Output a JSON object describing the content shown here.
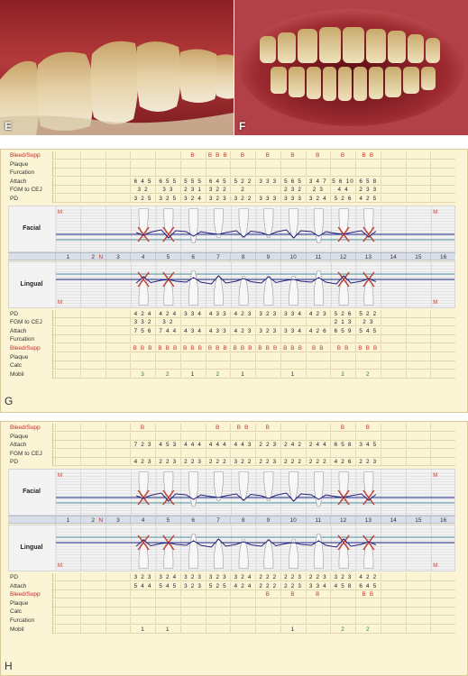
{
  "photos": {
    "left_label": "E",
    "right_label": "F"
  },
  "chart_g": {
    "label": "G",
    "top_rows": [
      {
        "label": "Bleed/Supp",
        "red": true,
        "cells": {
          "6": "B",
          "7": "B B B",
          "8": "B",
          "9": "B",
          "10": "B",
          "11": "B",
          "12": "B",
          "13": "B B"
        }
      },
      {
        "label": "Plaque",
        "cells": {}
      },
      {
        "label": "Furcation",
        "cells": {}
      },
      {
        "label": "Attach",
        "cells": {
          "4": "6 4 5",
          "5": "6 5 5",
          "6": "5 5 5",
          "7": "6 4 5",
          "8": "5 2 2",
          "9": "3 3 3",
          "10": "5 6 5",
          "11": "3 4 7",
          "12": "5 6 10",
          "13": "6 5 8"
        }
      },
      {
        "label": "FGM to CEJ",
        "cells": {
          "4": "3 2",
          "5": "3 3",
          "6": "2 3 1",
          "7": "3 2 2",
          "8": "2",
          "10": "2 3 2",
          "11": "2 3",
          "12": "4 4",
          "13": "2 3 3"
        }
      },
      {
        "label": "PD",
        "cells": {
          "4": "3 2 5",
          "5": "3 2 5",
          "6": "3 2 4",
          "7": "3 2 3",
          "8": "3 2 2",
          "9": "3 3 3",
          "10": "3 3 3",
          "11": "3 2 4",
          "12": "5 2 6",
          "13": "4 2 5"
        }
      }
    ],
    "facial_label": "Facial",
    "lingual_label": "Lingual",
    "tooth_numbers": [
      "1",
      "2",
      "3",
      "4",
      "5",
      "6",
      "7",
      "8",
      "9",
      "10",
      "11",
      "12",
      "13",
      "14",
      "15",
      "16"
    ],
    "n_marker": "N",
    "m_marker": "M",
    "bottom_rows": [
      {
        "label": "PD",
        "cells": {
          "4": "4 2 4",
          "5": "4 2 4",
          "6": "3 3 4",
          "7": "4 3 3",
          "8": "4 2 3",
          "9": "3 2 3",
          "10": "3 3 4",
          "11": "4 2 3",
          "12": "5 2 6",
          "13": "5 2 2"
        }
      },
      {
        "label": "FGM to CEJ",
        "cells": {
          "4": "3 3 2",
          "5": "3 2",
          "12": "2 1 3",
          "13": "2 3"
        }
      },
      {
        "label": "Attach",
        "cells": {
          "4": "7 5 6",
          "5": "7 4 4",
          "6": "4 3 4",
          "7": "4 3 3",
          "8": "4 2 3",
          "9": "3 2 3",
          "10": "3 3 4",
          "11": "4 2 6",
          "12": "6 5 9",
          "13": "5 4 5"
        }
      },
      {
        "label": "Furcation",
        "cells": {}
      },
      {
        "label": "Bleed/Supp",
        "red": true,
        "cells": {
          "4": "B B B",
          "5": "B B B",
          "6": "B B B",
          "7": "B B B",
          "8": "B B B",
          "9": "B B B",
          "10": "B B B",
          "11": "B B",
          "12": "B B",
          "13": "B B B"
        }
      },
      {
        "label": "Plaque",
        "cells": {}
      },
      {
        "label": "Calc",
        "cells": {}
      },
      {
        "label": "Mobil",
        "cells": {
          "4": "3",
          "5": "2",
          "6": "1",
          "7": "2",
          "8": "1",
          "10": "1",
          "12": "2",
          "13": "2"
        }
      }
    ]
  },
  "chart_h": {
    "label": "H",
    "top_rows": [
      {
        "label": "Bleed/Supp",
        "red": true,
        "cells": {
          "4": "B",
          "7": "B",
          "8": "B B",
          "9": "B",
          "12": "B",
          "13": "B"
        }
      },
      {
        "label": "Plaque",
        "cells": {}
      },
      {
        "label": "Attach",
        "cells": {
          "4": "7 2 3",
          "5": "4 5 3",
          "6": "4 4 4",
          "7": "4 4 4",
          "8": "4 4 3",
          "9": "2 2 3",
          "10": "2 4 2",
          "11": "2 4 4",
          "12": "6 5 8",
          "13": "3 4 5"
        }
      },
      {
        "label": "FGM to CEJ",
        "cells": {}
      },
      {
        "label": "PD",
        "cells": {
          "4": "4 2 3",
          "5": "2 2 3",
          "6": "2 2 3",
          "7": "2 2 2",
          "8": "3 2 2",
          "9": "2 2 3",
          "10": "2 2 2",
          "11": "2 2 2",
          "12": "4 2 6",
          "13": "2 2 3"
        }
      }
    ],
    "facial_label": "Facial",
    "lingual_label": "Lingual",
    "tooth_numbers": [
      "1",
      "2",
      "3",
      "4",
      "5",
      "6",
      "7",
      "8",
      "9",
      "10",
      "11",
      "12",
      "13",
      "14",
      "15",
      "16"
    ],
    "n_marker": "N",
    "m_marker": "M",
    "bottom_rows": [
      {
        "label": "PD",
        "cells": {
          "4": "3 2 3",
          "5": "3 2 4",
          "6": "3 2 3",
          "7": "3 2 3",
          "8": "3 2 4",
          "9": "2 2 2",
          "10": "2 2 3",
          "11": "2 2 3",
          "12": "3 2 3",
          "13": "4 2 2"
        }
      },
      {
        "label": "Attach",
        "cells": {
          "4": "5 4 4",
          "5": "5 4 5",
          "6": "3 2 3",
          "7": "5 2 5",
          "8": "4 2 4",
          "9": "2 2 2",
          "10": "2 2 3",
          "11": "3 3 4",
          "12": "4 5 8",
          "13": "6 4 5"
        }
      },
      {
        "label": "Bleed/Supp",
        "red": true,
        "cells": {
          "9": "B",
          "10": "B",
          "11": "B",
          "13": "B B"
        }
      },
      {
        "label": "Plaque",
        "cells": {}
      },
      {
        "label": "Calc",
        "cells": {}
      },
      {
        "label": "Furcation",
        "cells": {}
      },
      {
        "label": "Mobil",
        "cells": {
          "4": "1",
          "5": "1",
          "10": "1",
          "12": "2",
          "13": "2"
        }
      }
    ]
  }
}
